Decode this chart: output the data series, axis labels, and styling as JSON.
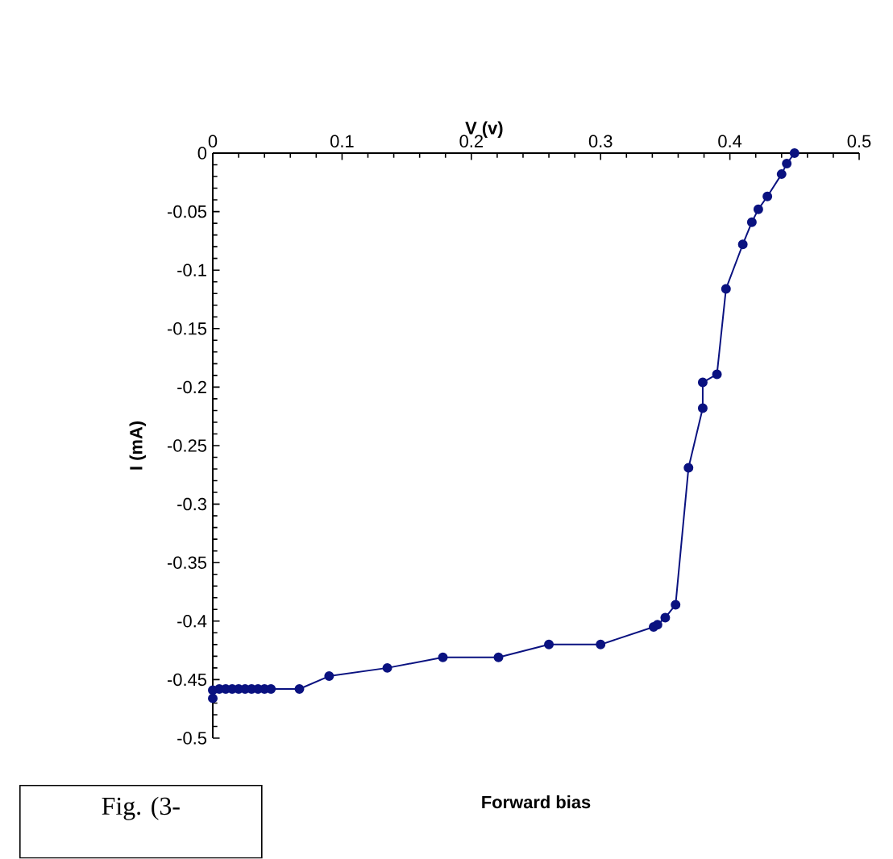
{
  "chart_data": {
    "type": "line",
    "title": "Forward bias",
    "xlabel": "V (v)",
    "ylabel": "I (mA)",
    "x": [
      0,
      0,
      0.005,
      0.01,
      0.015,
      0.02,
      0.025,
      0.03,
      0.035,
      0.04,
      0.045,
      0.067,
      0.09,
      0.135,
      0.178,
      0.221,
      0.26,
      0.3,
      0.341,
      0.344,
      0.35,
      0.358,
      0.368,
      0.379,
      0.379,
      0.39,
      0.397,
      0.41,
      0.417,
      0.422,
      0.429,
      0.44,
      0.444,
      0.45
    ],
    "series": [
      {
        "color": "#0a1280",
        "values": [
          -0.466,
          -0.459,
          -0.458,
          -0.458,
          -0.458,
          -0.458,
          -0.458,
          -0.458,
          -0.458,
          -0.458,
          -0.458,
          -0.458,
          -0.447,
          -0.44,
          -0.431,
          -0.431,
          -0.42,
          -0.42,
          -0.405,
          -0.403,
          -0.397,
          -0.386,
          -0.269,
          -0.218,
          -0.196,
          -0.189,
          -0.116,
          -0.078,
          -0.059,
          -0.048,
          -0.037,
          -0.018,
          -0.009,
          0
        ]
      }
    ],
    "xlim": [
      0,
      0.5
    ],
    "ylim": [
      -0.5,
      0
    ],
    "xticks": [
      0,
      0.1,
      0.2,
      0.3,
      0.4,
      0.5
    ],
    "yticks": [
      0,
      -0.05,
      -0.1,
      -0.15,
      -0.2,
      -0.25,
      -0.3,
      -0.35,
      -0.4,
      -0.45,
      -0.5
    ],
    "marker": "circle",
    "line_style": "solid",
    "annotations": [
      "Fig. (3-"
    ]
  }
}
